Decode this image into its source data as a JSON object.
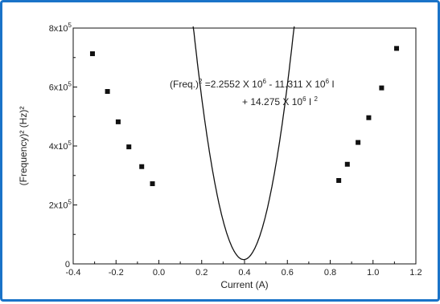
{
  "chart_data": {
    "type": "scatter",
    "xlabel": "Current (A)",
    "ylabel": "(Frequency)² (Hz)²",
    "xlim": [
      -0.4,
      1.2
    ],
    "ylim": [
      0,
      800000
    ],
    "x_ticks": [
      "-0.4",
      "-0.2",
      "0.0",
      "0.2",
      "0.4",
      "0.6",
      "0.8",
      "1.0",
      "1.2"
    ],
    "x_tick_values": [
      -0.4,
      -0.2,
      0.0,
      0.2,
      0.4,
      0.6,
      0.8,
      1.0,
      1.2
    ],
    "y_ticks": [
      {
        "value": 0,
        "base": "0",
        "exp": ""
      },
      {
        "value": 200000,
        "base": "2x10",
        "exp": "5"
      },
      {
        "value": 400000,
        "base": "4x10",
        "exp": "5"
      },
      {
        "value": 600000,
        "base": "6x10",
        "exp": "5"
      },
      {
        "value": 800000,
        "base": "8x10",
        "exp": "5"
      }
    ],
    "annotation": {
      "line1": {
        "pre": "(Freq.)",
        "sup1": "2",
        "mid": " =2.2552 X 10",
        "sup2": "6",
        "mid2": " - 11.311 X 10",
        "sup3": "6",
        "post": " I"
      },
      "line2": {
        "pre": "+ 14.275 X 10",
        "sup1": "6",
        "mid": "  I ",
        "sup2": "2"
      }
    },
    "fit": {
      "a": 2255200,
      "b": -11311000,
      "c": 14275000
    },
    "series": [
      {
        "points": [
          [
            -0.31,
            713000
          ],
          [
            -0.24,
            585000
          ],
          [
            -0.19,
            482000
          ],
          [
            -0.14,
            397000
          ],
          [
            -0.08,
            330000
          ],
          [
            -0.03,
            272000
          ],
          [
            0.84,
            283000
          ],
          [
            0.88,
            338000
          ],
          [
            0.93,
            412000
          ],
          [
            0.98,
            496000
          ],
          [
            1.04,
            597000
          ],
          [
            1.11,
            731000
          ]
        ]
      }
    ]
  }
}
